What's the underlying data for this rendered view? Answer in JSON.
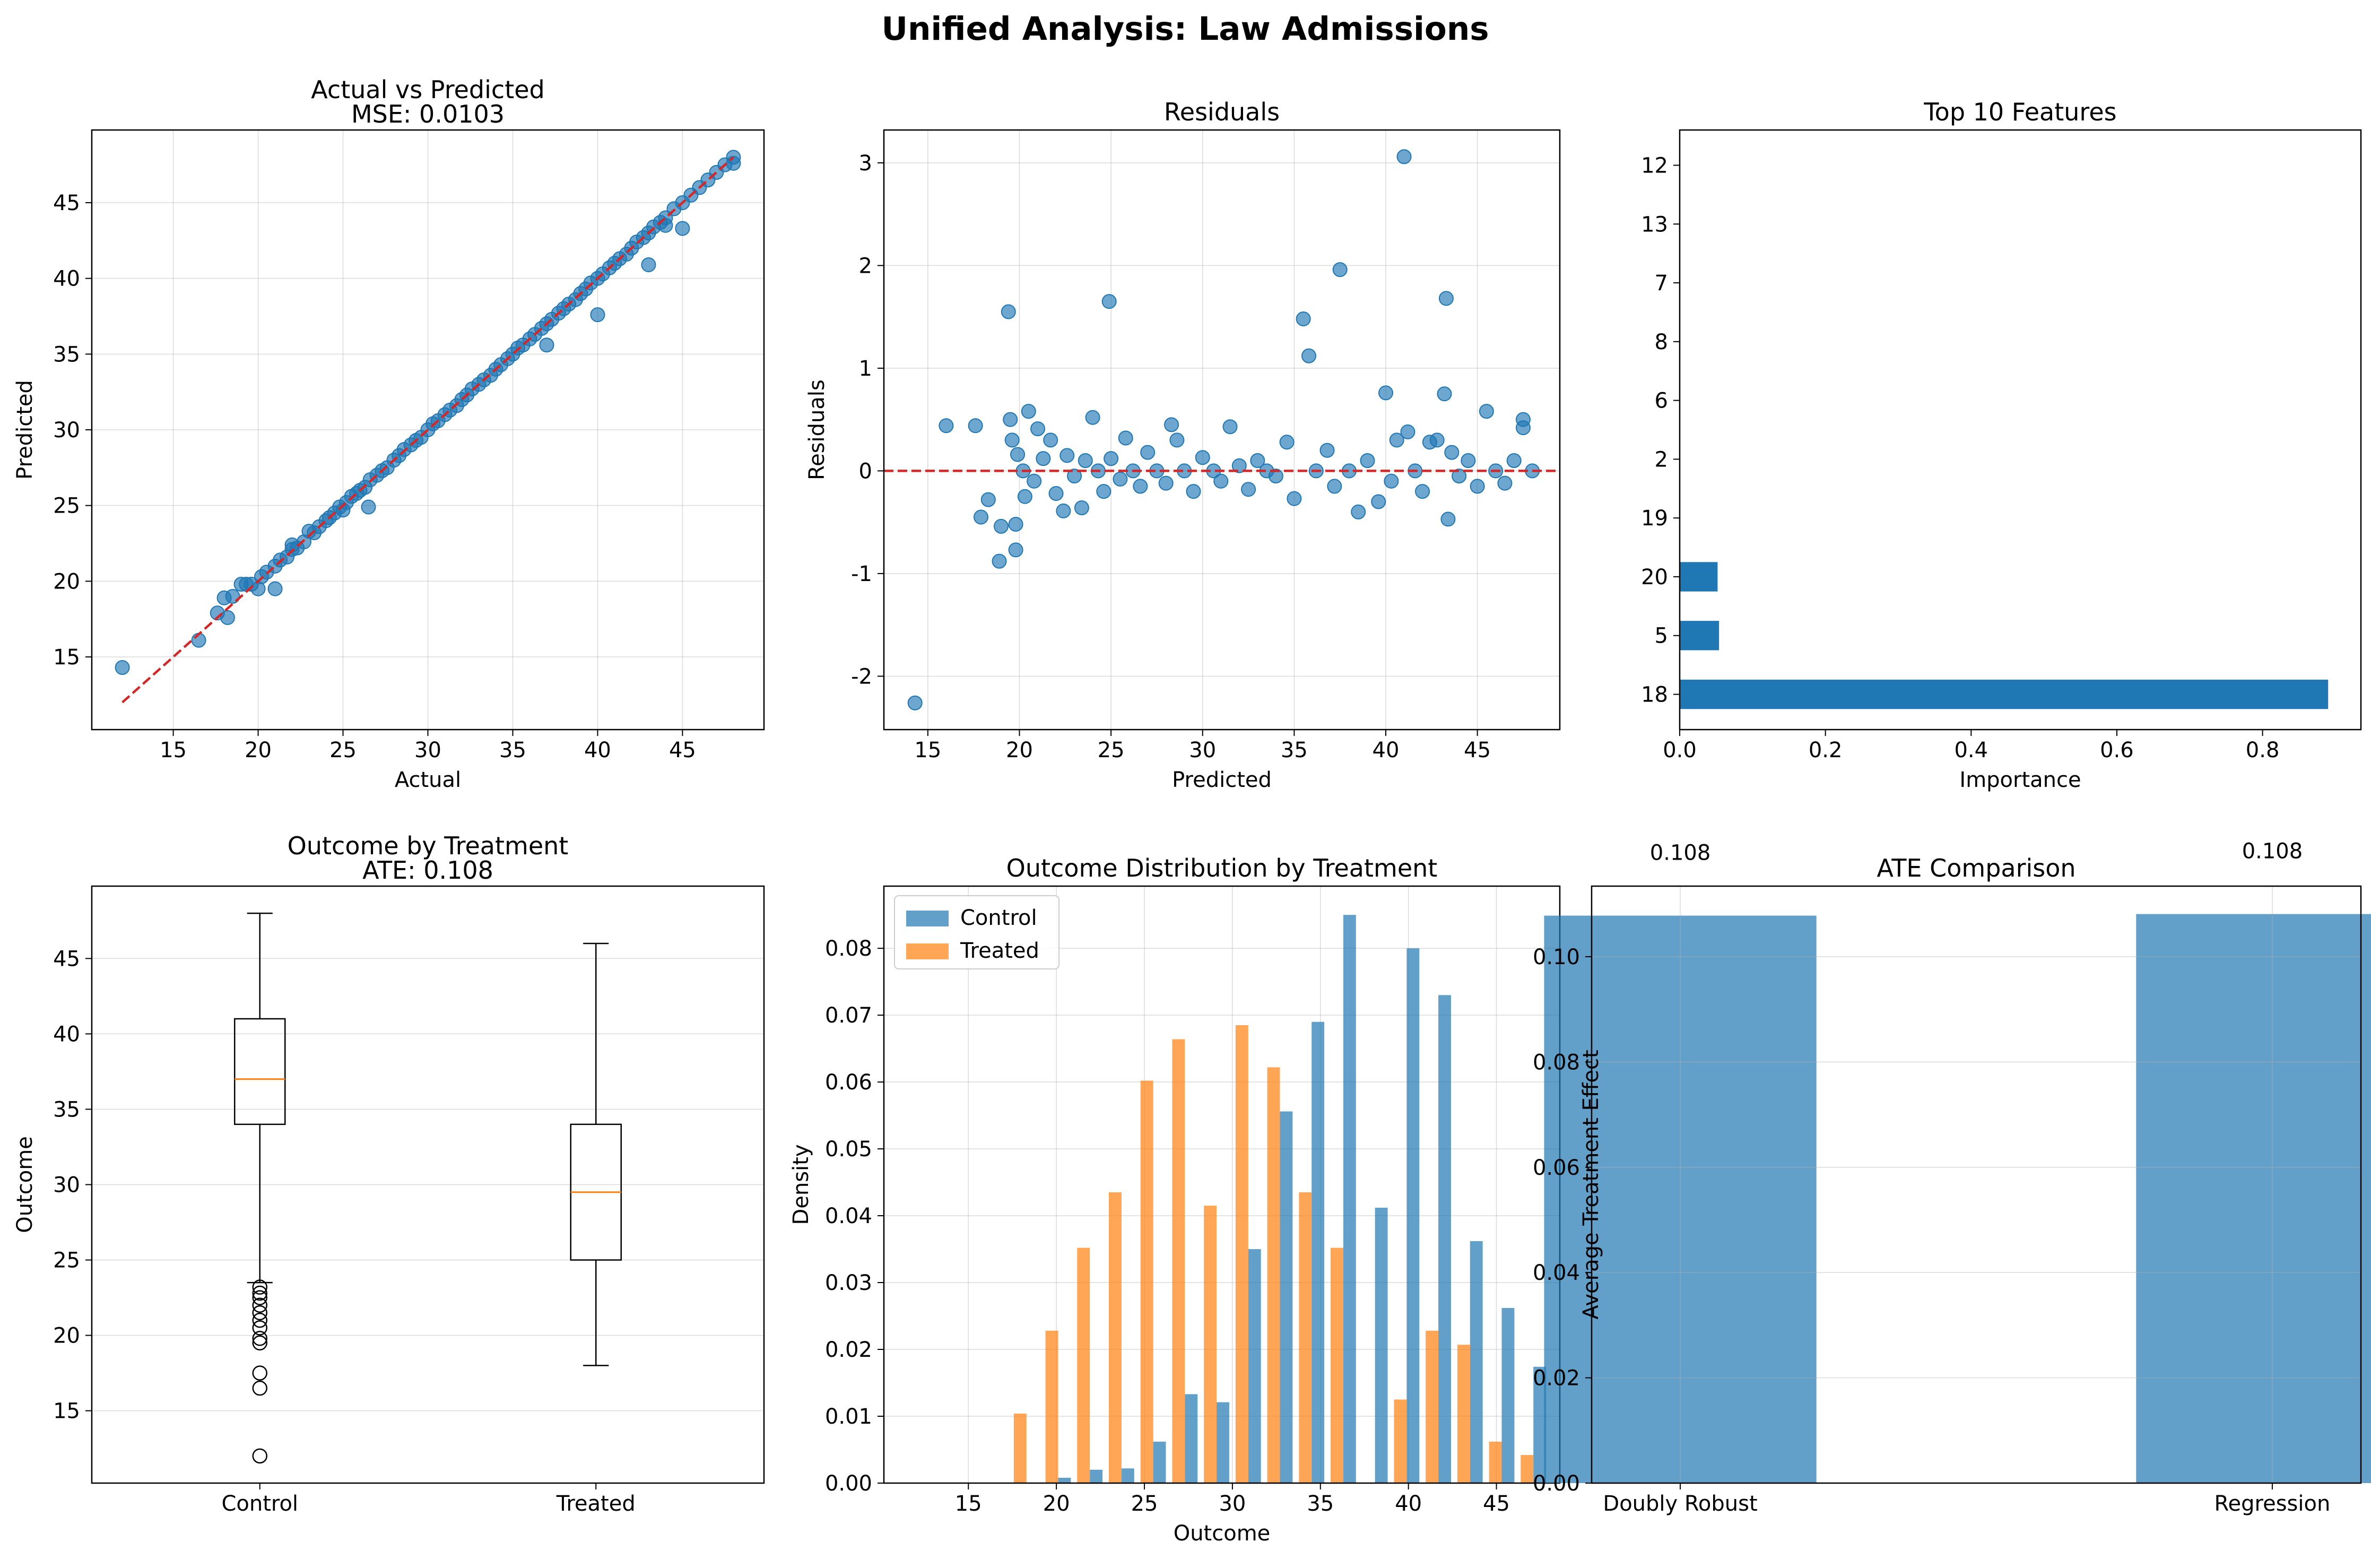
{
  "figure": {
    "suptitle": "Unified Analysis: Law Admissions"
  },
  "colors": {
    "blue": "#1f77b4",
    "orange": "#ff7f0e",
    "red": "#d62728",
    "grid": "#b0b0b0"
  },
  "chart_data": [
    {
      "id": "actual-vs-predicted",
      "type": "scatter",
      "title": "Actual vs Predicted",
      "subtitle": "MSE: 0.0103",
      "xlabel": "Actual",
      "ylabel": "Predicted",
      "xlim": [
        10.2,
        49.8
      ],
      "ylim": [
        10.2,
        49.8
      ],
      "xticks": [
        15,
        20,
        25,
        30,
        35,
        40,
        45
      ],
      "yticks": [
        15,
        20,
        25,
        30,
        35,
        40,
        45
      ],
      "grid": true,
      "reference_line": {
        "x": [
          12,
          48
        ],
        "y": [
          12,
          48
        ],
        "style": "dashed",
        "color": "#d62728"
      },
      "points": [
        [
          12.0,
          14.3
        ],
        [
          16.5,
          16.1
        ],
        [
          17.6,
          17.9
        ],
        [
          18.0,
          18.9
        ],
        [
          18.2,
          17.6
        ],
        [
          18.5,
          19.0
        ],
        [
          19.0,
          19.8
        ],
        [
          19.3,
          19.8
        ],
        [
          19.6,
          19.8
        ],
        [
          20.0,
          19.5
        ],
        [
          20.2,
          20.3
        ],
        [
          20.5,
          20.6
        ],
        [
          21.0,
          19.5
        ],
        [
          21.0,
          21.0
        ],
        [
          21.3,
          21.4
        ],
        [
          21.7,
          21.6
        ],
        [
          22.0,
          22.1
        ],
        [
          22.0,
          22.4
        ],
        [
          22.3,
          22.2
        ],
        [
          22.7,
          22.6
        ],
        [
          23.0,
          23.3
        ],
        [
          23.3,
          23.2
        ],
        [
          23.6,
          23.6
        ],
        [
          24.0,
          24.0
        ],
        [
          24.2,
          24.2
        ],
        [
          24.5,
          24.5
        ],
        [
          24.8,
          24.9
        ],
        [
          25.0,
          24.7
        ],
        [
          25.2,
          25.2
        ],
        [
          25.5,
          25.6
        ],
        [
          25.8,
          25.8
        ],
        [
          26.0,
          26.0
        ],
        [
          26.3,
          26.2
        ],
        [
          26.6,
          26.7
        ],
        [
          27.0,
          27.0
        ],
        [
          26.5,
          24.9
        ],
        [
          27.3,
          27.3
        ],
        [
          27.6,
          27.5
        ],
        [
          28.0,
          28.0
        ],
        [
          28.3,
          28.3
        ],
        [
          28.6,
          28.7
        ],
        [
          29.0,
          29.0
        ],
        [
          29.3,
          29.3
        ],
        [
          29.6,
          29.5
        ],
        [
          30.0,
          30.0
        ],
        [
          30.3,
          30.4
        ],
        [
          30.6,
          30.6
        ],
        [
          31.0,
          31.0
        ],
        [
          31.3,
          31.3
        ],
        [
          31.7,
          31.6
        ],
        [
          32.0,
          32.0
        ],
        [
          32.3,
          32.3
        ],
        [
          32.6,
          32.7
        ],
        [
          33.0,
          33.0
        ],
        [
          33.3,
          33.3
        ],
        [
          33.7,
          33.6
        ],
        [
          34.0,
          34.0
        ],
        [
          34.3,
          34.3
        ],
        [
          34.7,
          34.7
        ],
        [
          35.0,
          35.0
        ],
        [
          35.3,
          35.4
        ],
        [
          35.6,
          35.6
        ],
        [
          36.0,
          36.0
        ],
        [
          36.3,
          36.3
        ],
        [
          36.7,
          36.7
        ],
        [
          37.0,
          35.6
        ],
        [
          37.0,
          37.0
        ],
        [
          37.3,
          37.3
        ],
        [
          37.7,
          37.7
        ],
        [
          38.0,
          38.0
        ],
        [
          38.3,
          38.3
        ],
        [
          38.7,
          38.6
        ],
        [
          39.0,
          39.0
        ],
        [
          39.3,
          39.3
        ],
        [
          39.6,
          39.7
        ],
        [
          40.0,
          37.6
        ],
        [
          40.0,
          40.0
        ],
        [
          40.3,
          40.3
        ],
        [
          40.7,
          40.7
        ],
        [
          41.0,
          41.0
        ],
        [
          41.3,
          41.3
        ],
        [
          41.7,
          41.6
        ],
        [
          42.0,
          42.0
        ],
        [
          42.3,
          42.4
        ],
        [
          42.7,
          42.7
        ],
        [
          43.0,
          43.0
        ],
        [
          43.3,
          43.4
        ],
        [
          43.7,
          43.7
        ],
        [
          44.0,
          44.0
        ],
        [
          43.0,
          40.9
        ],
        [
          44.0,
          43.5
        ],
        [
          44.5,
          44.6
        ],
        [
          45.0,
          45.0
        ],
        [
          45.0,
          43.3
        ],
        [
          45.5,
          45.5
        ],
        [
          46.0,
          46.0
        ],
        [
          46.5,
          46.5
        ],
        [
          47.0,
          47.0
        ],
        [
          47.5,
          47.5
        ],
        [
          48.0,
          48.0
        ],
        [
          48.0,
          47.6
        ]
      ]
    },
    {
      "id": "residuals",
      "type": "scatter",
      "title": "Residuals",
      "xlabel": "Predicted",
      "ylabel": "Residuals",
      "xlim": [
        12.6,
        49.5
      ],
      "ylim": [
        -2.52,
        3.32
      ],
      "xticks": [
        15,
        20,
        25,
        30,
        35,
        40,
        45
      ],
      "yticks": [
        -2,
        -1,
        0,
        1,
        2,
        3
      ],
      "grid": true,
      "reference_line": {
        "y": 0,
        "style": "dashed",
        "color": "#d62728"
      },
      "points": [
        [
          14.3,
          -2.26
        ],
        [
          16.0,
          0.44
        ],
        [
          17.6,
          0.44
        ],
        [
          17.9,
          -0.45
        ],
        [
          18.3,
          -0.28
        ],
        [
          18.9,
          -0.88
        ],
        [
          19.0,
          -0.54
        ],
        [
          19.4,
          1.55
        ],
        [
          19.5,
          0.5
        ],
        [
          19.6,
          0.3
        ],
        [
          19.8,
          -0.52
        ],
        [
          19.8,
          -0.77
        ],
        [
          19.9,
          0.16
        ],
        [
          20.2,
          0.0
        ],
        [
          20.3,
          -0.25
        ],
        [
          20.5,
          0.58
        ],
        [
          20.8,
          -0.1
        ],
        [
          21.0,
          0.41
        ],
        [
          21.3,
          0.12
        ],
        [
          21.7,
          0.3
        ],
        [
          22.0,
          -0.22
        ],
        [
          22.4,
          -0.39
        ],
        [
          22.6,
          0.15
        ],
        [
          23.0,
          -0.05
        ],
        [
          23.4,
          -0.36
        ],
        [
          23.6,
          0.1
        ],
        [
          24.0,
          0.52
        ],
        [
          24.3,
          0.0
        ],
        [
          24.6,
          -0.2
        ],
        [
          24.9,
          1.65
        ],
        [
          25.0,
          0.12
        ],
        [
          25.5,
          -0.08
        ],
        [
          25.8,
          0.32
        ],
        [
          26.2,
          0.0
        ],
        [
          26.6,
          -0.15
        ],
        [
          27.0,
          0.18
        ],
        [
          27.5,
          0.0
        ],
        [
          28.0,
          -0.12
        ],
        [
          28.3,
          0.45
        ],
        [
          28.6,
          0.3
        ],
        [
          29.0,
          0.0
        ],
        [
          29.5,
          -0.2
        ],
        [
          30.0,
          0.13
        ],
        [
          30.6,
          0.0
        ],
        [
          31.0,
          -0.1
        ],
        [
          31.5,
          0.43
        ],
        [
          32.0,
          0.05
        ],
        [
          32.5,
          -0.18
        ],
        [
          33.0,
          0.1
        ],
        [
          33.5,
          0.0
        ],
        [
          34.0,
          -0.05
        ],
        [
          34.6,
          0.28
        ],
        [
          35.0,
          -0.27
        ],
        [
          35.5,
          1.48
        ],
        [
          35.8,
          1.12
        ],
        [
          36.2,
          0.0
        ],
        [
          36.8,
          0.2
        ],
        [
          37.2,
          -0.15
        ],
        [
          37.5,
          1.96
        ],
        [
          38.0,
          0.0
        ],
        [
          38.5,
          -0.4
        ],
        [
          39.0,
          0.1
        ],
        [
          39.6,
          -0.3
        ],
        [
          40.0,
          0.76
        ],
        [
          40.3,
          -0.1
        ],
        [
          40.6,
          0.3
        ],
        [
          41.0,
          3.06
        ],
        [
          41.2,
          0.38
        ],
        [
          41.6,
          0.0
        ],
        [
          42.0,
          -0.2
        ],
        [
          42.4,
          0.28
        ],
        [
          42.8,
          0.3
        ],
        [
          43.2,
          0.75
        ],
        [
          43.3,
          1.68
        ],
        [
          43.4,
          -0.47
        ],
        [
          43.6,
          0.18
        ],
        [
          44.0,
          -0.05
        ],
        [
          44.5,
          0.1
        ],
        [
          45.0,
          -0.15
        ],
        [
          45.5,
          0.58
        ],
        [
          46.0,
          0.0
        ],
        [
          46.5,
          -0.12
        ],
        [
          47.0,
          0.1
        ],
        [
          47.5,
          0.42
        ],
        [
          47.5,
          0.5
        ],
        [
          48.0,
          0.0
        ]
      ]
    },
    {
      "id": "top-features",
      "type": "bar",
      "orientation": "horizontal",
      "title": "Top 10 Features",
      "xlabel": "Importance",
      "ylabel": "",
      "xlim": [
        0,
        0.935
      ],
      "xticks": [
        0.0,
        0.2,
        0.4,
        0.6,
        0.8
      ],
      "categories": [
        "18",
        "5",
        "20",
        "19",
        "2",
        "6",
        "8",
        "7",
        "13",
        "12"
      ],
      "values": [
        0.89,
        0.054,
        0.052,
        0.0,
        0.0,
        0.0,
        0.0,
        0.0,
        0.0,
        0.0
      ],
      "grid": false
    },
    {
      "id": "outcome-by-treatment",
      "type": "box",
      "title": "Outcome by Treatment",
      "subtitle": "ATE: 0.108",
      "xlabel": "",
      "ylabel": "Outcome",
      "ylim": [
        10.2,
        49.8
      ],
      "yticks": [
        15,
        20,
        25,
        30,
        35,
        40,
        45
      ],
      "categories": [
        "Control",
        "Treated"
      ],
      "boxes": [
        {
          "whislo": 23.5,
          "q1": 34.0,
          "med": 37.0,
          "q3": 41.0,
          "whishi": 48.0,
          "fliers": [
            23.2,
            22.8,
            22.5,
            22.0,
            21.5,
            21.0,
            20.5,
            19.8,
            19.5,
            17.5,
            16.5,
            12.0
          ]
        },
        {
          "whislo": 18.0,
          "q1": 25.0,
          "med": 29.5,
          "q3": 34.0,
          "whishi": 46.0,
          "fliers": []
        }
      ],
      "grid": true
    },
    {
      "id": "outcome-distribution",
      "type": "bar",
      "subtype": "grouped-histogram",
      "title": "Outcome Distribution by Treatment",
      "xlabel": "Outcome",
      "ylabel": "Density",
      "xlim": [
        10.2,
        48.6
      ],
      "ylim": [
        0,
        0.0893
      ],
      "xticks": [
        15,
        20,
        25,
        30,
        35,
        40,
        45
      ],
      "yticks": [
        0.0,
        0.01,
        0.02,
        0.03,
        0.04,
        0.05,
        0.06,
        0.07,
        0.08
      ],
      "bin_edges": [
        12.0,
        13.8,
        15.6,
        17.4,
        19.2,
        21.0,
        22.8,
        24.6,
        26.4,
        28.2,
        30.0,
        31.8,
        33.6,
        35.4,
        37.2,
        39.0,
        40.8,
        42.6,
        44.4,
        46.2,
        48.0
      ],
      "series": [
        {
          "name": "Control",
          "values": [
            0.0,
            0.0,
            0.0,
            0.0,
            0.0008,
            0.002,
            0.0022,
            0.0062,
            0.0133,
            0.0121,
            0.035,
            0.0556,
            0.069,
            0.085,
            0.0412,
            0.08,
            0.073,
            0.0362,
            0.0262,
            0.0174
          ]
        },
        {
          "name": "Treated",
          "values": [
            0.0,
            0.0,
            0.0,
            0.0104,
            0.0228,
            0.0352,
            0.0435,
            0.0602,
            0.0664,
            0.0415,
            0.0685,
            0.0622,
            0.0435,
            0.0352,
            0.0,
            0.0125,
            0.0228,
            0.0207,
            0.0062,
            0.0042
          ]
        }
      ],
      "legend": "top-left",
      "grid": true
    },
    {
      "id": "ate-comparison",
      "type": "bar",
      "title": "ATE Comparison",
      "xlabel": "",
      "ylabel": "Average Treatment Effect",
      "ylim": [
        0,
        0.1134
      ],
      "yticks": [
        0.0,
        0.02,
        0.04,
        0.06,
        0.08,
        0.1
      ],
      "categories": [
        "Doubly Robust",
        "Regression"
      ],
      "values": [
        0.1078,
        0.1081
      ],
      "data_labels": [
        "0.108",
        "0.108"
      ],
      "grid": true
    }
  ]
}
